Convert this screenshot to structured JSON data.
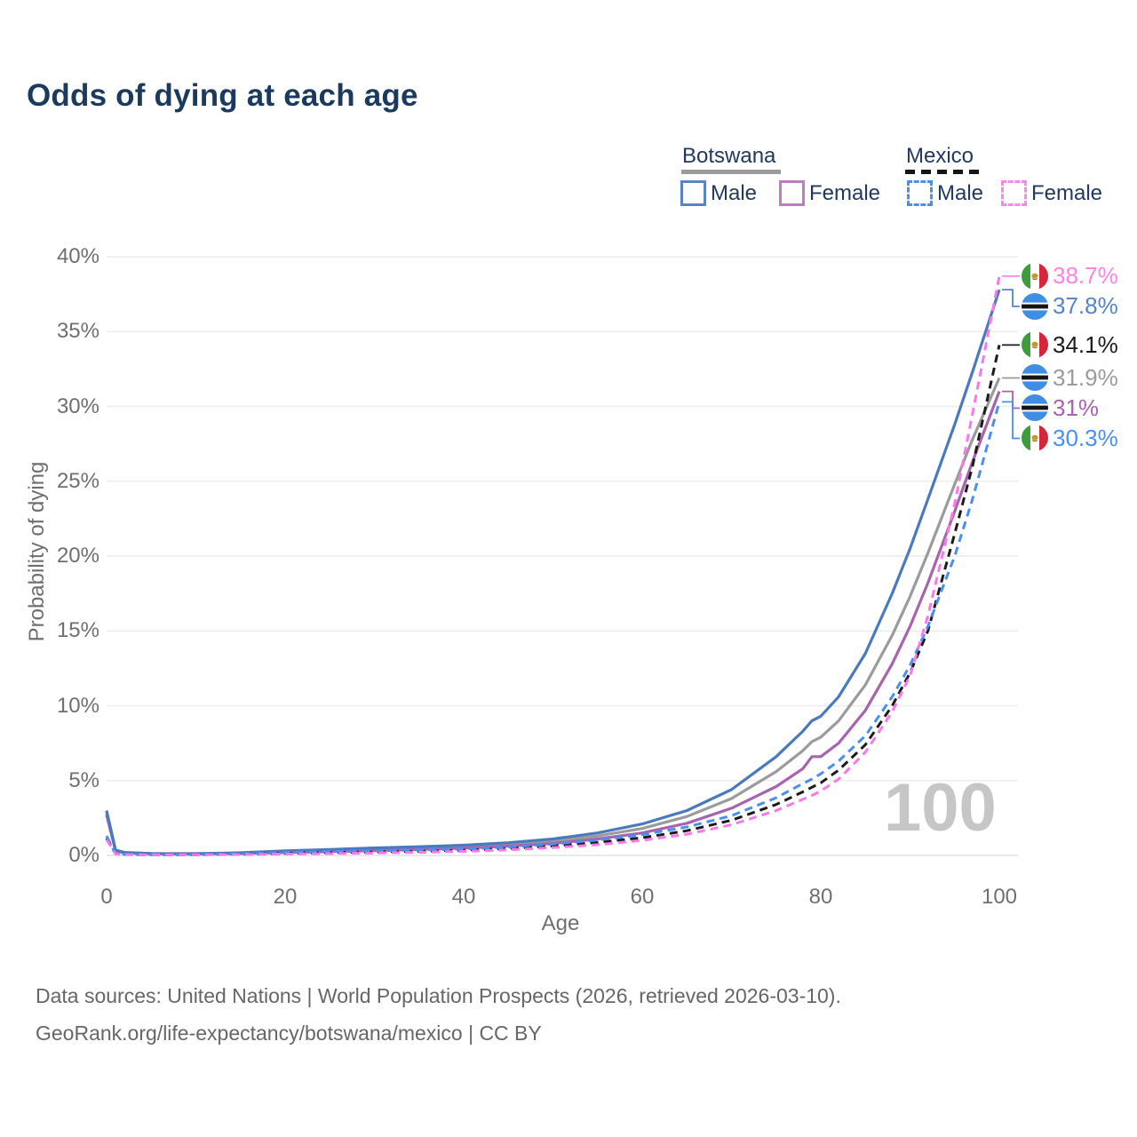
{
  "title": "Odds of dying at each age",
  "legend": {
    "groups": [
      {
        "label": "Botswana",
        "line_style": "solid",
        "underline_color": "#9b9b9b",
        "items": [
          {
            "label": "Male",
            "color": "#4a7abe"
          },
          {
            "label": "Female",
            "color": "#bd7cbd"
          }
        ]
      },
      {
        "label": "Mexico",
        "line_style": "dashed",
        "underline_color": "#151515",
        "items": [
          {
            "label": "Male",
            "color": "#4a8ef0"
          },
          {
            "label": "Female",
            "color": "#fb86ee"
          }
        ]
      }
    ]
  },
  "watermark": "100",
  "footer": {
    "line1": "Data sources: United Nations | World Population Prospects (2026, retrieved 2026-03-10).",
    "line2": "GeoRank.org/life-expectancy/botswana/mexico | CC BY"
  },
  "chart_data": {
    "type": "line",
    "title": "Odds of dying at each age",
    "xlabel": "Age",
    "ylabel": "Probability of dying",
    "xlim": [
      0,
      100
    ],
    "ylim": [
      0,
      40
    ],
    "grid": true,
    "legend_position": "top-right",
    "x_ticks": [
      0,
      20,
      40,
      60,
      80,
      100
    ],
    "x_tick_labels": [
      "0",
      "20",
      "40",
      "60",
      "80",
      "100"
    ],
    "y_ticks": [
      0,
      5,
      10,
      15,
      20,
      25,
      30,
      35,
      40
    ],
    "y_tick_labels": [
      "0%",
      "5%",
      "10%",
      "15%",
      "20%",
      "25%",
      "30%",
      "35%",
      "40%"
    ],
    "x": [
      0,
      1,
      2,
      5,
      10,
      15,
      20,
      25,
      30,
      35,
      40,
      45,
      50,
      55,
      60,
      65,
      70,
      75,
      78,
      79,
      80,
      82,
      85,
      88,
      90,
      92,
      95,
      97,
      100
    ],
    "series": [
      {
        "id": "botswana-both-line",
        "name": "Botswana Both",
        "country": "botswana",
        "sex": "both",
        "color": "#9b9b9b",
        "dash": false,
        "end_value_pct": 31.9,
        "values": [
          2.85,
          0.32,
          0.18,
          0.12,
          0.11,
          0.15,
          0.25,
          0.33,
          0.42,
          0.49,
          0.58,
          0.73,
          0.95,
          1.3,
          1.8,
          2.6,
          3.8,
          5.6,
          7.0,
          7.6,
          7.9,
          9.0,
          11.4,
          14.7,
          17.3,
          20.2,
          24.8,
          27.8,
          31.9
        ]
      },
      {
        "id": "botswana-female-line",
        "name": "Botswana Female",
        "country": "botswana",
        "sex": "female",
        "color": "#a763ae",
        "dash": false,
        "end_value_pct": 31.0,
        "values": [
          2.7,
          0.3,
          0.17,
          0.11,
          0.1,
          0.13,
          0.19,
          0.25,
          0.32,
          0.4,
          0.48,
          0.62,
          0.8,
          1.1,
          1.5,
          2.15,
          3.15,
          4.6,
          5.8,
          6.6,
          6.6,
          7.5,
          9.7,
          12.8,
          15.3,
          18.2,
          23.0,
          26.3,
          31.0
        ]
      },
      {
        "id": "botswana-male-line",
        "name": "Botswana Male",
        "country": "botswana",
        "sex": "male",
        "color": "#4a7abe",
        "dash": false,
        "end_value_pct": 37.8,
        "values": [
          3.0,
          0.35,
          0.2,
          0.13,
          0.12,
          0.18,
          0.3,
          0.4,
          0.5,
          0.58,
          0.68,
          0.85,
          1.1,
          1.5,
          2.1,
          3.0,
          4.4,
          6.6,
          8.3,
          9.0,
          9.3,
          10.6,
          13.5,
          17.5,
          20.5,
          23.8,
          28.8,
          32.3,
          37.8
        ]
      },
      {
        "id": "mexico-both-line",
        "name": "Mexico Both",
        "country": "mexico",
        "sex": "both",
        "color": "#1b1b1b",
        "dash": true,
        "end_value_pct": 34.1,
        "values": [
          1.15,
          0.11,
          0.06,
          0.045,
          0.045,
          0.08,
          0.14,
          0.19,
          0.23,
          0.28,
          0.35,
          0.46,
          0.63,
          0.87,
          1.18,
          1.65,
          2.35,
          3.4,
          4.25,
          4.55,
          4.85,
          5.7,
          7.4,
          10.0,
          12.2,
          15.0,
          21.5,
          26.0,
          34.1
        ]
      },
      {
        "id": "mexico-male-line",
        "name": "Mexico Male",
        "country": "mexico",
        "sex": "male",
        "color": "#4a8ef0",
        "dash": true,
        "end_value_pct": 30.3,
        "values": [
          1.3,
          0.12,
          0.07,
          0.05,
          0.05,
          0.1,
          0.19,
          0.26,
          0.31,
          0.36,
          0.43,
          0.56,
          0.76,
          1.02,
          1.38,
          1.9,
          2.65,
          3.85,
          4.8,
          5.1,
          5.45,
          6.3,
          8.0,
          10.6,
          12.7,
          15.3,
          20.0,
          23.8,
          30.3
        ]
      },
      {
        "id": "mexico-female-line",
        "name": "Mexico Female",
        "country": "mexico",
        "sex": "female",
        "color": "#fb77ea",
        "dash": true,
        "end_value_pct": 38.7,
        "values": [
          1.05,
          0.1,
          0.055,
          0.04,
          0.04,
          0.06,
          0.09,
          0.12,
          0.16,
          0.21,
          0.27,
          0.37,
          0.52,
          0.72,
          1.0,
          1.42,
          2.05,
          3.0,
          3.75,
          4.0,
          4.3,
          5.1,
          6.9,
          9.6,
          12.0,
          16.0,
          23.5,
          29.5,
          38.7
        ]
      }
    ],
    "end_labels": [
      {
        "value": "38.7%",
        "pct": 38.7,
        "country": "mexico",
        "color": "#fd82e8"
      },
      {
        "value": "37.8%",
        "pct": 37.8,
        "country": "botswana",
        "color": "#5585c8"
      },
      {
        "value": "34.1%",
        "pct": 34.1,
        "country": "mexico",
        "color": "#1b1b1b"
      },
      {
        "value": "31.9%",
        "pct": 31.9,
        "country": "botswana",
        "color": "#9b9b9b"
      },
      {
        "value": "31%",
        "pct": 31.0,
        "country": "botswana",
        "color": "#a763ae"
      },
      {
        "value": "30.3%",
        "pct": 30.3,
        "country": "mexico",
        "color": "#4a8ef0"
      }
    ]
  }
}
